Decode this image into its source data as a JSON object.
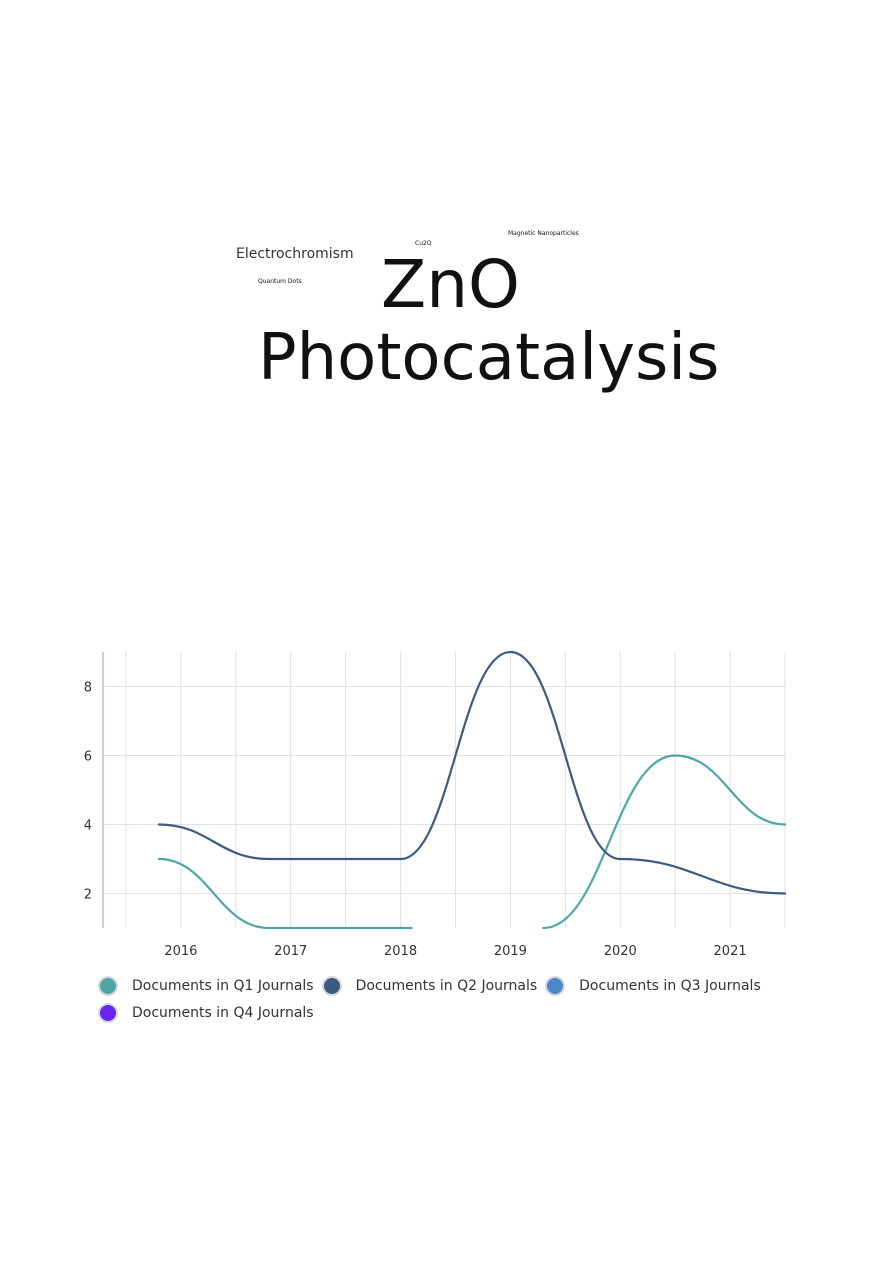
{
  "word_cloud": [
    {
      "id": "electro",
      "text": "Electrochromism"
    },
    {
      "id": "quantum",
      "text": "Quantum Dots"
    },
    {
      "id": "cu2o",
      "text": "Cu2O"
    },
    {
      "id": "magnet",
      "text": "Magnetic Nanoparticles"
    },
    {
      "id": "zno",
      "text": "ZnO"
    },
    {
      "id": "photo",
      "text": "Photocatalysis"
    }
  ],
  "chart_data": {
    "type": "line",
    "categories": [
      "2016",
      "2017",
      "2018",
      "2019",
      "2020",
      "2021"
    ],
    "ylim": [
      1,
      9
    ],
    "yticks": [
      2,
      4,
      6,
      8
    ],
    "grid": true,
    "legend_position": "bottom",
    "series": [
      {
        "name": "Documents in Q1 Journals",
        "color": "#4fa6a6",
        "points": [
          [
            2015.8,
            3
          ],
          [
            2016.8,
            1
          ],
          [
            2018.1,
            1
          ],
          [
            null,
            null
          ],
          [
            2019.3,
            1
          ],
          [
            2020.5,
            6
          ],
          [
            2021.5,
            4
          ]
        ]
      },
      {
        "name": "Documents in Q2 Journals",
        "color": "#3d5a80",
        "points": [
          [
            2015.8,
            4
          ],
          [
            2016.8,
            3
          ],
          [
            2018.0,
            3
          ],
          [
            2019.0,
            9
          ],
          [
            2020.0,
            3
          ],
          [
            2021.5,
            2
          ]
        ]
      },
      {
        "name": "Documents in Q3 Journals",
        "color": "#4a88c7",
        "points": []
      },
      {
        "name": "Documents in Q4 Journals",
        "color": "#6a26f0",
        "points": []
      }
    ]
  }
}
